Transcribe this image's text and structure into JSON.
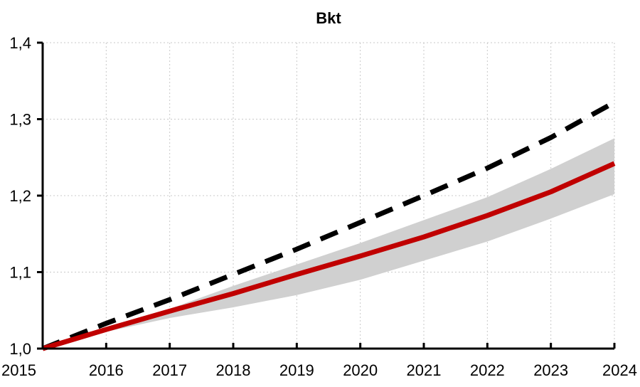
{
  "chart_data": {
    "type": "line",
    "title": "Bkt",
    "xlabel": "",
    "ylabel": "",
    "xlim": [
      2015,
      2024
    ],
    "ylim": [
      1.0,
      1.4
    ],
    "x_ticks": [
      "2015",
      "2016",
      "2017",
      "2018",
      "2019",
      "2020",
      "2021",
      "2022",
      "2023",
      "2024"
    ],
    "y_ticks": [
      "1,0",
      "1,1",
      "1,2",
      "1,3",
      "1,4"
    ],
    "grid": true,
    "legend": "none",
    "x": [
      2015,
      2016,
      2017,
      2018,
      2019,
      2020,
      2021,
      2022,
      2023,
      2024
    ],
    "series": [
      {
        "style": "dashed",
        "color": "#000000",
        "values": [
          1.0,
          1.033,
          1.064,
          1.097,
          1.13,
          1.165,
          1.2,
          1.236,
          1.276,
          1.322
        ]
      },
      {
        "style": "solid",
        "color": "#c00000",
        "values": [
          1.0,
          1.025,
          1.049,
          1.072,
          1.097,
          1.121,
          1.146,
          1.174,
          1.205,
          1.242
        ]
      }
    ],
    "band": {
      "color": "#d0d0d0",
      "lower": [
        1.0,
        1.022,
        1.04,
        1.054,
        1.07,
        1.09,
        1.115,
        1.14,
        1.17,
        1.202
      ],
      "upper": [
        1.0,
        1.027,
        1.052,
        1.082,
        1.11,
        1.138,
        1.168,
        1.198,
        1.235,
        1.275
      ]
    }
  }
}
